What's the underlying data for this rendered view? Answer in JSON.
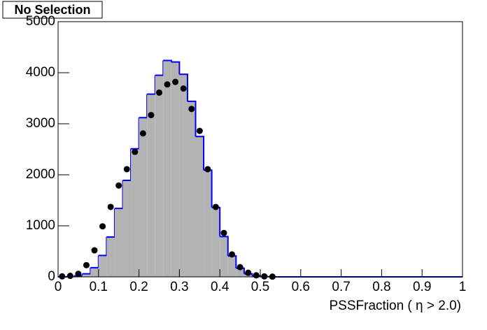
{
  "chart_data": {
    "type": "histogram",
    "title": "No Selection",
    "xlabel": "PSSFraction ( η > 2.0)",
    "bins": [
      0,
      0.02,
      0.04,
      0.06,
      0.08,
      0.1,
      0.12,
      0.14,
      0.16,
      0.18,
      0.2,
      0.22,
      0.24,
      0.26,
      0.28,
      0.3,
      0.32,
      0.34,
      0.36,
      0.38,
      0.4,
      0.42,
      0.44,
      0.46,
      0.48,
      0.5,
      0.52,
      0.54,
      0.56,
      0.58,
      0.6,
      0.62,
      0.64,
      0.66,
      0.68,
      0.7,
      0.72,
      0.74,
      0.76,
      0.78,
      0.8,
      0.82,
      0.84,
      0.86,
      0.88,
      0.9,
      0.92,
      0.94,
      0.96,
      0.98,
      1
    ],
    "counts": [
      0,
      5,
      20,
      60,
      180,
      420,
      780,
      1340,
      1890,
      2510,
      3120,
      3580,
      3950,
      4240,
      4210,
      3970,
      3440,
      2750,
      2090,
      1360,
      790,
      410,
      170,
      60,
      20,
      5,
      0,
      0,
      0,
      0,
      0,
      0,
      0,
      0,
      0,
      0,
      0,
      0,
      0,
      0,
      0,
      0,
      0,
      0,
      0,
      0,
      0,
      0,
      0,
      0
    ],
    "color": "#0000ff",
    "fill": "#b3b3b3",
    "points": {
      "x": [
        0.01,
        0.03,
        0.05,
        0.07,
        0.09,
        0.11,
        0.13,
        0.15,
        0.17,
        0.19,
        0.21,
        0.23,
        0.25,
        0.27,
        0.29,
        0.31,
        0.33,
        0.35,
        0.37,
        0.39,
        0.41,
        0.43,
        0.45,
        0.47,
        0.49,
        0.51,
        0.53
      ],
      "values": [
        10,
        20,
        60,
        230,
        520,
        990,
        1370,
        1790,
        2110,
        2450,
        2810,
        3170,
        3610,
        3770,
        3820,
        3690,
        3290,
        2860,
        2110,
        1370,
        860,
        440,
        190,
        80,
        30,
        10,
        5
      ],
      "color": "#000000"
    },
    "xlim": [
      0,
      1
    ],
    "xticks": [
      0,
      0.1,
      0.2,
      0.3,
      0.4,
      0.5,
      0.6,
      0.7,
      0.8,
      0.9,
      1
    ],
    "ylim": [
      0,
      5000
    ],
    "yticks": [
      0,
      1000,
      2000,
      3000,
      4000,
      5000
    ]
  }
}
